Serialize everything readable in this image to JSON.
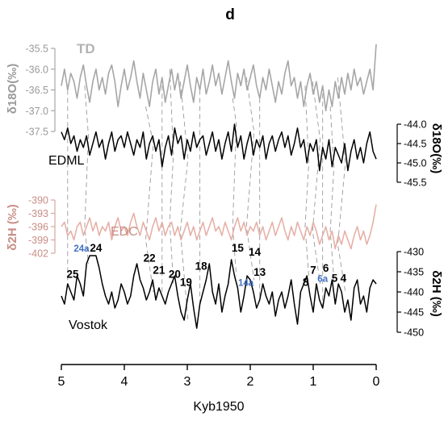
{
  "panel_label": "d",
  "chart_data": {
    "type": "line",
    "x_axis": {
      "label": "Kyb1950",
      "reversed": true,
      "range": [
        5,
        0
      ],
      "ticks": [
        5,
        4,
        3,
        2,
        1,
        0
      ]
    },
    "series": [
      {
        "name": "TD",
        "label_color": "#b3b3b3",
        "color": "#a6a6a6",
        "y_label": "δ18O(‰)",
        "y_range": [
          -37.5,
          -35.5
        ],
        "y_ticks": [
          "-35.5",
          "-36.0",
          "-36.5",
          "-37.0",
          "-37.5"
        ],
        "x": [
          5.0,
          4.95,
          4.9,
          4.85,
          4.8,
          4.75,
          4.7,
          4.65,
          4.6,
          4.55,
          4.5,
          4.45,
          4.4,
          4.35,
          4.3,
          4.25,
          4.2,
          4.15,
          4.1,
          4.05,
          4.0,
          3.95,
          3.9,
          3.85,
          3.8,
          3.75,
          3.7,
          3.65,
          3.6,
          3.55,
          3.5,
          3.45,
          3.4,
          3.35,
          3.3,
          3.25,
          3.2,
          3.15,
          3.1,
          3.05,
          3.0,
          2.95,
          2.9,
          2.85,
          2.8,
          2.75,
          2.7,
          2.65,
          2.6,
          2.55,
          2.5,
          2.45,
          2.4,
          2.35,
          2.3,
          2.25,
          2.2,
          2.15,
          2.1,
          2.05,
          2.0,
          1.95,
          1.9,
          1.85,
          1.8,
          1.75,
          1.7,
          1.65,
          1.6,
          1.55,
          1.5,
          1.45,
          1.4,
          1.35,
          1.3,
          1.25,
          1.2,
          1.15,
          1.1,
          1.05,
          1.0,
          0.95,
          0.9,
          0.85,
          0.8,
          0.75,
          0.7,
          0.65,
          0.6,
          0.55,
          0.5,
          0.45,
          0.4,
          0.35,
          0.3,
          0.25,
          0.2,
          0.15,
          0.1,
          0.05,
          0.0
        ],
        "values": [
          -36.4,
          -36.0,
          -36.5,
          -36.1,
          -36.3,
          -36.7,
          -36.2,
          -35.9,
          -36.4,
          -36.8,
          -36.3,
          -36.0,
          -36.5,
          -36.2,
          -36.6,
          -36.1,
          -35.9,
          -36.3,
          -36.9,
          -36.4,
          -36.0,
          -36.5,
          -36.2,
          -35.8,
          -36.3,
          -36.7,
          -36.1,
          -36.5,
          -36.9,
          -36.3,
          -36.0,
          -36.6,
          -36.2,
          -36.8,
          -36.4,
          -36.0,
          -36.5,
          -36.1,
          -36.7,
          -36.3,
          -35.9,
          -36.4,
          -36.8,
          -36.2,
          -36.5,
          -36.0,
          -36.6,
          -36.3,
          -35.9,
          -36.4,
          -36.1,
          -36.6,
          -36.2,
          -35.8,
          -36.3,
          -36.7,
          -36.1,
          -36.4,
          -36.0,
          -36.5,
          -36.2,
          -35.9,
          -36.4,
          -36.7,
          -36.2,
          -36.5,
          -36.0,
          -36.4,
          -36.8,
          -36.3,
          -36.6,
          -36.1,
          -35.8,
          -36.4,
          -36.2,
          -36.7,
          -36.3,
          -36.9,
          -36.4,
          -36.1,
          -36.6,
          -36.3,
          -36.8,
          -36.4,
          -37.0,
          -36.5,
          -36.9,
          -36.3,
          -36.7,
          -36.2,
          -36.6,
          -36.1,
          -36.5,
          -36.0,
          -36.4,
          -36.2,
          -36.6,
          -36.3,
          -36.0,
          -36.5,
          -35.4
        ]
      },
      {
        "name": "EDML",
        "label_color": "#000000",
        "color": "#000000",
        "y_label": "δ18O(‰)",
        "y_range": [
          -45.5,
          -44.0
        ],
        "y_ticks": [
          "-44.0",
          "-44.5",
          "-45.0",
          "-45.5"
        ],
        "x": [
          5.0,
          4.95,
          4.9,
          4.85,
          4.8,
          4.75,
          4.7,
          4.65,
          4.6,
          4.55,
          4.5,
          4.45,
          4.4,
          4.35,
          4.3,
          4.25,
          4.2,
          4.15,
          4.1,
          4.05,
          4.0,
          3.95,
          3.9,
          3.85,
          3.8,
          3.75,
          3.7,
          3.65,
          3.6,
          3.55,
          3.5,
          3.45,
          3.4,
          3.35,
          3.3,
          3.25,
          3.2,
          3.15,
          3.1,
          3.05,
          3.0,
          2.95,
          2.9,
          2.85,
          2.8,
          2.75,
          2.7,
          2.65,
          2.6,
          2.55,
          2.5,
          2.45,
          2.4,
          2.35,
          2.3,
          2.25,
          2.2,
          2.15,
          2.1,
          2.05,
          2.0,
          1.95,
          1.9,
          1.85,
          1.8,
          1.75,
          1.7,
          1.65,
          1.6,
          1.55,
          1.5,
          1.45,
          1.4,
          1.35,
          1.3,
          1.25,
          1.2,
          1.15,
          1.1,
          1.05,
          1.0,
          0.95,
          0.9,
          0.85,
          0.8,
          0.75,
          0.7,
          0.65,
          0.6,
          0.55,
          0.5,
          0.45,
          0.4,
          0.35,
          0.3,
          0.25,
          0.2,
          0.15,
          0.1,
          0.05,
          0.0
        ],
        "values": [
          -44.2,
          -44.4,
          -44.1,
          -44.5,
          -44.3,
          -44.7,
          -44.4,
          -44.6,
          -44.3,
          -44.8,
          -44.5,
          -44.2,
          -44.6,
          -44.4,
          -44.9,
          -44.5,
          -44.2,
          -44.7,
          -44.4,
          -44.3,
          -44.6,
          -44.2,
          -44.5,
          -44.8,
          -44.4,
          -44.6,
          -44.2,
          -44.9,
          -44.5,
          -44.3,
          -44.7,
          -44.4,
          -45.1,
          -44.6,
          -44.3,
          -44.8,
          -44.1,
          -44.5,
          -44.3,
          -44.9,
          -44.4,
          -44.7,
          -44.2,
          -44.6,
          -44.4,
          -44.3,
          -44.8,
          -44.5,
          -44.2,
          -44.7,
          -44.4,
          -44.9,
          -44.5,
          -44.2,
          -44.7,
          -44.0,
          -44.6,
          -44.3,
          -44.9,
          -44.5,
          -44.2,
          -44.8,
          -44.4,
          -44.6,
          -44.3,
          -44.9,
          -44.5,
          -44.3,
          -44.7,
          -44.4,
          -44.2,
          -44.6,
          -44.3,
          -44.8,
          -44.5,
          -44.1,
          -44.6,
          -44.4,
          -45.0,
          -44.5,
          -44.7,
          -44.4,
          -45.2,
          -44.6,
          -44.9,
          -44.4,
          -45.1,
          -44.6,
          -44.8,
          -45.0,
          -44.5,
          -45.2,
          -44.7,
          -44.4,
          -44.9,
          -44.6,
          -45.0,
          -44.5,
          -44.2,
          -44.7,
          -44.9
        ]
      },
      {
        "name": "EDC",
        "label_color": "#c88e85",
        "color": "#e6b0a6",
        "y_label": "δ2H (‰)",
        "y_range": [
          -402,
          -390
        ],
        "y_ticks": [
          "-390",
          "-393",
          "-396",
          "-399",
          "-402"
        ],
        "x": [
          5.0,
          4.95,
          4.9,
          4.85,
          4.8,
          4.75,
          4.7,
          4.65,
          4.6,
          4.55,
          4.5,
          4.45,
          4.4,
          4.35,
          4.3,
          4.25,
          4.2,
          4.15,
          4.1,
          4.05,
          4.0,
          3.95,
          3.9,
          3.85,
          3.8,
          3.75,
          3.7,
          3.65,
          3.6,
          3.55,
          3.5,
          3.45,
          3.4,
          3.35,
          3.3,
          3.25,
          3.2,
          3.15,
          3.1,
          3.05,
          3.0,
          2.95,
          2.9,
          2.85,
          2.8,
          2.75,
          2.7,
          2.65,
          2.6,
          2.55,
          2.5,
          2.45,
          2.4,
          2.35,
          2.3,
          2.25,
          2.2,
          2.15,
          2.1,
          2.05,
          2.0,
          1.95,
          1.9,
          1.85,
          1.8,
          1.75,
          1.7,
          1.65,
          1.6,
          1.55,
          1.5,
          1.45,
          1.4,
          1.35,
          1.3,
          1.25,
          1.2,
          1.15,
          1.1,
          1.05,
          1.0,
          0.95,
          0.9,
          0.85,
          0.8,
          0.75,
          0.7,
          0.65,
          0.6,
          0.55,
          0.5,
          0.45,
          0.4,
          0.35,
          0.3,
          0.25,
          0.2,
          0.15,
          0.1,
          0.05,
          0.0
        ],
        "values": [
          -396,
          -395,
          -398,
          -397,
          -399,
          -396,
          -395,
          -398,
          -396,
          -394,
          -397,
          -395,
          -398,
          -396,
          -397,
          -395,
          -399,
          -396,
          -394,
          -397,
          -396,
          -398,
          -395,
          -393,
          -396,
          -398,
          -395,
          -397,
          -399,
          -396,
          -394,
          -397,
          -395,
          -398,
          -396,
          -395,
          -398,
          -396,
          -399,
          -397,
          -395,
          -398,
          -396,
          -399,
          -397,
          -395,
          -398,
          -396,
          -394,
          -397,
          -396,
          -398,
          -395,
          -397,
          -399,
          -396,
          -394,
          -397,
          -395,
          -398,
          -396,
          -397,
          -395,
          -398,
          -396,
          -399,
          -397,
          -395,
          -398,
          -396,
          -394,
          -397,
          -399,
          -396,
          -398,
          -395,
          -397,
          -399,
          -396,
          -398,
          -395,
          -397,
          -400,
          -398,
          -396,
          -399,
          -397,
          -401,
          -398,
          -400,
          -397,
          -399,
          -401,
          -398,
          -396,
          -399,
          -397,
          -400,
          -398,
          -395,
          -391
        ]
      },
      {
        "name": "Vostok",
        "label_color": "#000000",
        "color": "#000000",
        "y_label": "δ2H (‰)",
        "y_range": [
          -450,
          -430
        ],
        "y_ticks": [
          "-430",
          "-435",
          "-440",
          "-445",
          "-450"
        ],
        "x": [
          5.0,
          4.95,
          4.9,
          4.85,
          4.8,
          4.75,
          4.7,
          4.65,
          4.6,
          4.55,
          4.5,
          4.45,
          4.4,
          4.35,
          4.3,
          4.25,
          4.2,
          4.15,
          4.1,
          4.05,
          4.0,
          3.95,
          3.9,
          3.85,
          3.8,
          3.75,
          3.7,
          3.65,
          3.6,
          3.55,
          3.5,
          3.45,
          3.4,
          3.35,
          3.3,
          3.25,
          3.2,
          3.15,
          3.1,
          3.05,
          3.0,
          2.95,
          2.9,
          2.85,
          2.8,
          2.75,
          2.7,
          2.65,
          2.6,
          2.55,
          2.5,
          2.45,
          2.4,
          2.35,
          2.3,
          2.25,
          2.2,
          2.15,
          2.1,
          2.05,
          2.0,
          1.95,
          1.9,
          1.85,
          1.8,
          1.75,
          1.7,
          1.65,
          1.6,
          1.55,
          1.5,
          1.45,
          1.4,
          1.35,
          1.3,
          1.25,
          1.2,
          1.15,
          1.1,
          1.05,
          1.0,
          0.95,
          0.9,
          0.85,
          0.8,
          0.75,
          0.7,
          0.65,
          0.6,
          0.55,
          0.5,
          0.45,
          0.4,
          0.35,
          0.3,
          0.25,
          0.2,
          0.15,
          0.1,
          0.05,
          0.0
        ],
        "values": [
          -441,
          -443,
          -438,
          -440,
          -442,
          -436,
          -438,
          -441,
          -433,
          -431,
          -431,
          -431,
          -434,
          -438,
          -441,
          -443,
          -440,
          -444,
          -442,
          -438,
          -440,
          -443,
          -441,
          -436,
          -433,
          -437,
          -439,
          -442,
          -440,
          -437,
          -442,
          -439,
          -441,
          -443,
          -440,
          -438,
          -436,
          -441,
          -445,
          -447,
          -442,
          -438,
          -444,
          -449,
          -443,
          -440,
          -437,
          -433,
          -440,
          -443,
          -438,
          -445,
          -441,
          -438,
          -432,
          -436,
          -439,
          -445,
          -441,
          -436,
          -437,
          -440,
          -444,
          -442,
          -438,
          -441,
          -443,
          -440,
          -446,
          -442,
          -440,
          -444,
          -441,
          -437,
          -443,
          -448,
          -440,
          -438,
          -436,
          -441,
          -445,
          -438,
          -442,
          -444,
          -439,
          -441,
          -437,
          -443,
          -438,
          -440,
          -445,
          -442,
          -447,
          -439,
          -437,
          -443,
          -441,
          -445,
          -439,
          -437,
          -438
        ]
      }
    ],
    "annotations": [
      {
        "text": "25",
        "x": 4.82,
        "y": -436.5,
        "color": "#000000"
      },
      {
        "text": "24a",
        "x": 4.68,
        "y": -430.0,
        "color": "#4472c4"
      },
      {
        "text": "24",
        "x": 4.45,
        "y": -430.0,
        "color": "#000000"
      },
      {
        "text": "22",
        "x": 3.6,
        "y": -432.5,
        "color": "#000000"
      },
      {
        "text": "21",
        "x": 3.45,
        "y": -435.5,
        "color": "#000000"
      },
      {
        "text": "20",
        "x": 3.2,
        "y": -436.5,
        "color": "#000000"
      },
      {
        "text": "19",
        "x": 3.02,
        "y": -438.5,
        "color": "#000000"
      },
      {
        "text": "18",
        "x": 2.78,
        "y": -434.5,
        "color": "#000000"
      },
      {
        "text": "15",
        "x": 2.2,
        "y": -430.0,
        "color": "#000000"
      },
      {
        "text": "14",
        "x": 1.93,
        "y": -431.0,
        "color": "#000000"
      },
      {
        "text": "14a",
        "x": 2.07,
        "y": -438.5,
        "color": "#4472c4"
      },
      {
        "text": "13",
        "x": 1.85,
        "y": -436.0,
        "color": "#000000"
      },
      {
        "text": "8",
        "x": 1.12,
        "y": -438.5,
        "color": "#000000"
      },
      {
        "text": "7",
        "x": 1.0,
        "y": -435.5,
        "color": "#000000"
      },
      {
        "text": "6a",
        "x": 0.85,
        "y": -437.5,
        "color": "#4472c4"
      },
      {
        "text": "6",
        "x": 0.8,
        "y": -435.0,
        "color": "#000000"
      },
      {
        "text": "5",
        "x": 0.66,
        "y": -437.5,
        "color": "#000000"
      },
      {
        "text": "4",
        "x": 0.52,
        "y": -437.5,
        "color": "#000000"
      }
    ],
    "tie_points": [
      4.9,
      4.6,
      3.6,
      3.4,
      3.25,
      3.05,
      2.8,
      2.25,
      2.0,
      1.85,
      1.1,
      0.95,
      0.85,
      0.7,
      0.55
    ],
    "grid": false,
    "legend": "inline"
  }
}
